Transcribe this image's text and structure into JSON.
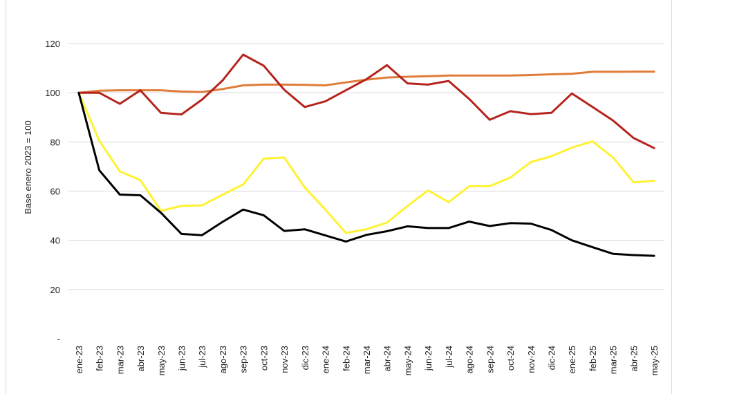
{
  "chart_data": {
    "type": "line",
    "title": "",
    "xlabel": "",
    "ylabel": "Base enero 2023 = 100",
    "ylim": [
      0,
      120
    ],
    "yticks": [
      0,
      20,
      40,
      60,
      80,
      100,
      120
    ],
    "ytick_labels": [
      "-",
      "20",
      "40",
      "60",
      "80",
      "100",
      "120"
    ],
    "grid": "horizontal",
    "legend": "none",
    "categories": [
      "ene-23",
      "feb-23",
      "mar-23",
      "abr-23",
      "may-23",
      "jun-23",
      "jul-23",
      "ago-23",
      "sep-23",
      "oct-23",
      "nov-23",
      "dic-23",
      "ene-24",
      "feb-24",
      "mar-24",
      "abr-24",
      "may-24",
      "jun-24",
      "jul-24",
      "ago-24",
      "sep-24",
      "oct-24",
      "nov-24",
      "dic-24",
      "ene-25",
      "feb-25",
      "mar-25",
      "abr-25",
      "may-25"
    ],
    "series": [
      {
        "color": "#E07B39",
        "values": [
          100,
          100.8,
          101,
          101,
          101,
          100.5,
          100.3,
          101.5,
          103,
          103.3,
          103.3,
          103.2,
          103,
          104.2,
          105.3,
          106.2,
          106.5,
          106.7,
          107,
          107,
          107,
          107,
          107.2,
          107.5,
          107.7,
          108.5,
          108.5,
          108.6,
          108.6
        ]
      },
      {
        "color": "#B5241C",
        "values": [
          100,
          100,
          95.5,
          101,
          91.8,
          91.2,
          97.2,
          105,
          115.5,
          111,
          101.2,
          94.2,
          96.5,
          101,
          105.5,
          111.2,
          103.8,
          103.3,
          104.8,
          97.5,
          89,
          92.5,
          91.3,
          91.8,
          99.7,
          94.2,
          88.7,
          81.6,
          77.5
        ]
      },
      {
        "color": "#FFF233",
        "values": [
          100,
          80.5,
          68,
          64.5,
          52,
          54,
          54.2,
          58.5,
          62.7,
          73.2,
          73.7,
          61.5,
          52.5,
          43,
          44.5,
          47.2,
          54,
          60.3,
          55.5,
          62,
          62,
          65.5,
          71.8,
          74.2,
          77.7,
          80.2,
          73.7,
          63.6,
          64.2
        ]
      },
      {
        "color": "#000000",
        "values": [
          100,
          68.5,
          58.6,
          58.3,
          51.2,
          42.6,
          42.1,
          47.5,
          52.5,
          50.2,
          43.8,
          44.5,
          42,
          39.5,
          42.2,
          43.7,
          45.7,
          45,
          45,
          47.6,
          45.8,
          47,
          46.8,
          44.2,
          40,
          37.2,
          34.5,
          34,
          33.7
        ]
      }
    ]
  }
}
